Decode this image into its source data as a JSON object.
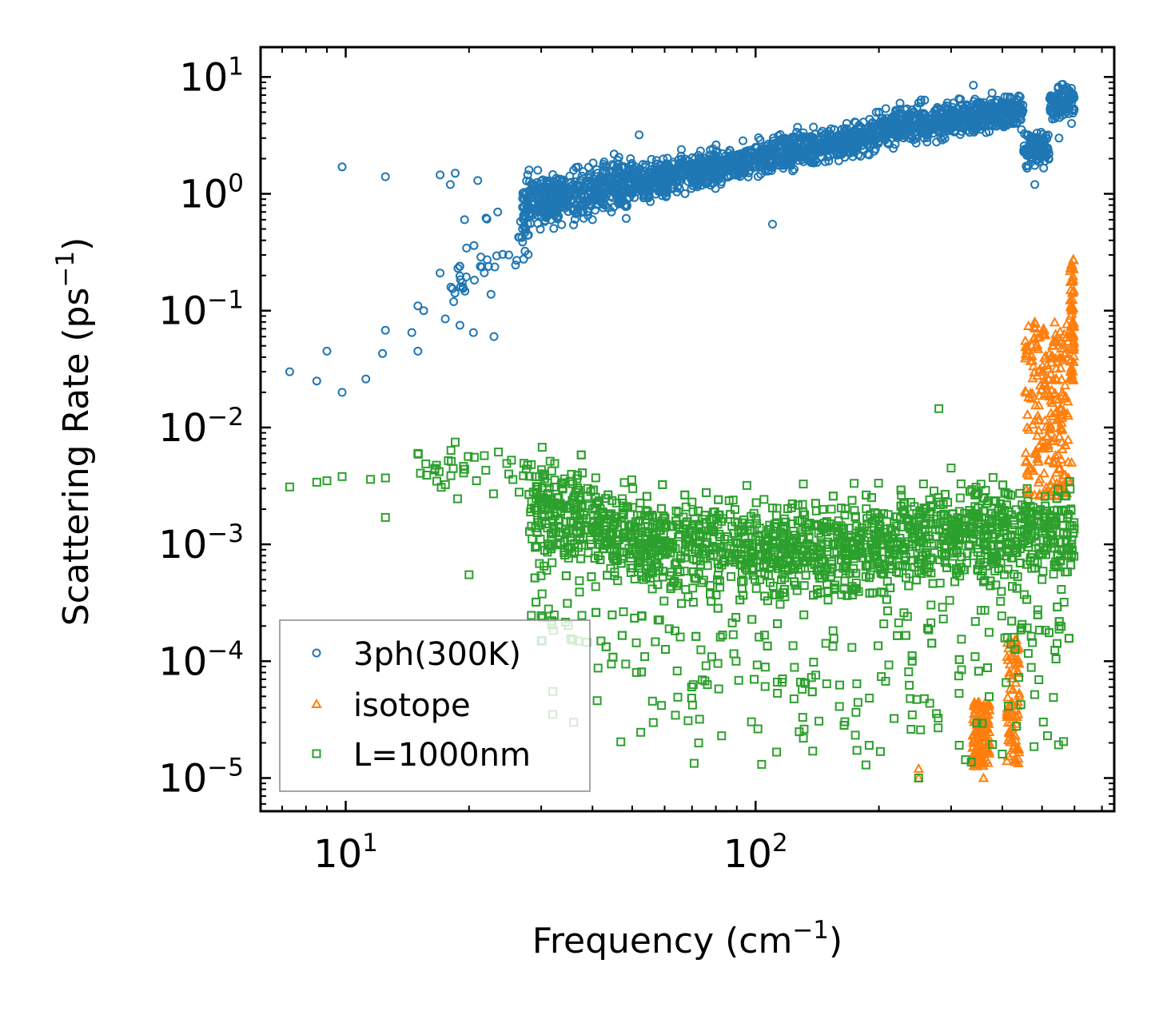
{
  "chart_data": {
    "type": "scatter",
    "xscale": "log",
    "yscale": "log",
    "xlabel": "Frequency (cm",
    "xlabel_sup": "−1",
    "xlabel_close": ")",
    "ylabel": "Scattering Rate (ps",
    "ylabel_sup": "−1",
    "ylabel_close": ")",
    "xlim": [
      6.2,
      750
    ],
    "ylim": [
      5.2e-06,
      18
    ],
    "x_ticks": [
      {
        "value": 10,
        "base": "10",
        "exp": "1"
      },
      {
        "value": 100,
        "base": "10",
        "exp": "2"
      }
    ],
    "y_ticks": [
      {
        "value": 10,
        "base": "10",
        "exp": "1"
      },
      {
        "value": 1,
        "base": "10",
        "exp": "0"
      },
      {
        "value": 0.1,
        "base": "10",
        "exp": "−1"
      },
      {
        "value": 0.01,
        "base": "10",
        "exp": "−2"
      },
      {
        "value": 0.001,
        "base": "10",
        "exp": "−3"
      },
      {
        "value": 0.0001,
        "base": "10",
        "exp": "−4"
      },
      {
        "value": 1e-05,
        "base": "10",
        "exp": "−5"
      }
    ],
    "legend_position": "lower-left",
    "series": [
      {
        "name": "3ph(300K)",
        "marker": "circle",
        "color": "#1f77b4",
        "sample_points": [
          [
            7.3,
            0.03
          ],
          [
            8.5,
            0.025
          ],
          [
            9.0,
            0.045
          ],
          [
            9.8,
            0.02
          ],
          [
            9.8,
            1.7
          ],
          [
            11.2,
            0.026
          ],
          [
            12.3,
            0.043
          ],
          [
            12.5,
            0.068
          ],
          [
            12.5,
            1.4
          ],
          [
            14.5,
            0.065
          ],
          [
            15.0,
            0.045
          ],
          [
            15.0,
            0.11
          ],
          [
            15.5,
            0.1
          ],
          [
            17.0,
            0.21
          ],
          [
            17.0,
            1.45
          ],
          [
            17.5,
            0.085
          ],
          [
            18.0,
            1.2
          ],
          [
            18.5,
            1.5
          ],
          [
            19.0,
            0.075
          ],
          [
            19.0,
            0.24
          ],
          [
            19.5,
            0.6
          ],
          [
            20.5,
            0.065
          ],
          [
            21.0,
            1.3
          ],
          [
            22.0,
            0.62
          ],
          [
            23.0,
            0.06
          ],
          [
            23.5,
            0.7
          ],
          [
            25.0,
            0.3
          ],
          [
            27.0,
            0.5
          ],
          [
            28.0,
            1.6
          ],
          [
            30.0,
            0.9
          ],
          [
            35.0,
            0.8
          ],
          [
            40.0,
            0.6
          ],
          [
            50.0,
            1.0
          ],
          [
            52.0,
            3.2
          ],
          [
            60.0,
            1.3
          ],
          [
            80.0,
            2.0
          ],
          [
            100.0,
            2.5
          ],
          [
            110.0,
            0.55
          ],
          [
            150.0,
            3.0
          ],
          [
            200.0,
            5.0
          ],
          [
            250.0,
            6.0
          ],
          [
            300.0,
            5.0
          ],
          [
            340.0,
            8.5
          ],
          [
            420.0,
            5.5
          ],
          [
            480.0,
            1.2
          ],
          [
            550.0,
            3.0
          ],
          [
            590.0,
            4.0
          ]
        ]
      },
      {
        "name": "isotope",
        "marker": "triangle",
        "color": "#ff7f0e",
        "sample_points": [
          [
            250.0,
            1.2e-05
          ],
          [
            250.0,
            1e-05
          ],
          [
            340.0,
            2e-05
          ],
          [
            360.0,
            1e-05
          ],
          [
            420.0,
            3e-05
          ],
          [
            460.0,
            0.01
          ],
          [
            480.0,
            0.08
          ],
          [
            500.0,
            0.03
          ],
          [
            530.0,
            0.05
          ],
          [
            560.0,
            0.02
          ],
          [
            590.0,
            0.25
          ],
          [
            590.0,
            0.005
          ],
          [
            580.0,
            0.0037
          ]
        ]
      },
      {
        "name": "L=1000nm",
        "marker": "square",
        "color": "#2ca02c",
        "sample_points": [
          [
            7.3,
            0.0031
          ],
          [
            8.5,
            0.0034
          ],
          [
            9.0,
            0.0035
          ],
          [
            9.8,
            0.0038
          ],
          [
            11.5,
            0.0036
          ],
          [
            12.5,
            0.0037
          ],
          [
            12.5,
            0.0017
          ],
          [
            15.0,
            0.006
          ],
          [
            18.5,
            0.0075
          ],
          [
            20.0,
            0.00055
          ],
          [
            25.0,
            0.004
          ],
          [
            30.0,
            0.00015
          ],
          [
            32.0,
            5.5e-05
          ],
          [
            32.0,
            3.5e-05
          ],
          [
            36.0,
            3e-05
          ],
          [
            40.0,
            0.002
          ],
          [
            50.0,
            0.0009
          ],
          [
            60.0,
            0.0014
          ],
          [
            80.0,
            0.0009
          ],
          [
            100.0,
            0.0011
          ],
          [
            120.0,
            0.0006
          ],
          [
            150.0,
            0.001
          ],
          [
            200.0,
            0.0015
          ],
          [
            250.0,
            1e-05
          ],
          [
            280.0,
            0.0145
          ],
          [
            300.0,
            0.0045
          ],
          [
            340.0,
            0.0008
          ],
          [
            400.0,
            0.0015
          ],
          [
            460.0,
            0.003
          ],
          [
            500.0,
            0.0005
          ],
          [
            550.0,
            0.0002
          ],
          [
            590.0,
            0.0008
          ]
        ]
      }
    ]
  }
}
